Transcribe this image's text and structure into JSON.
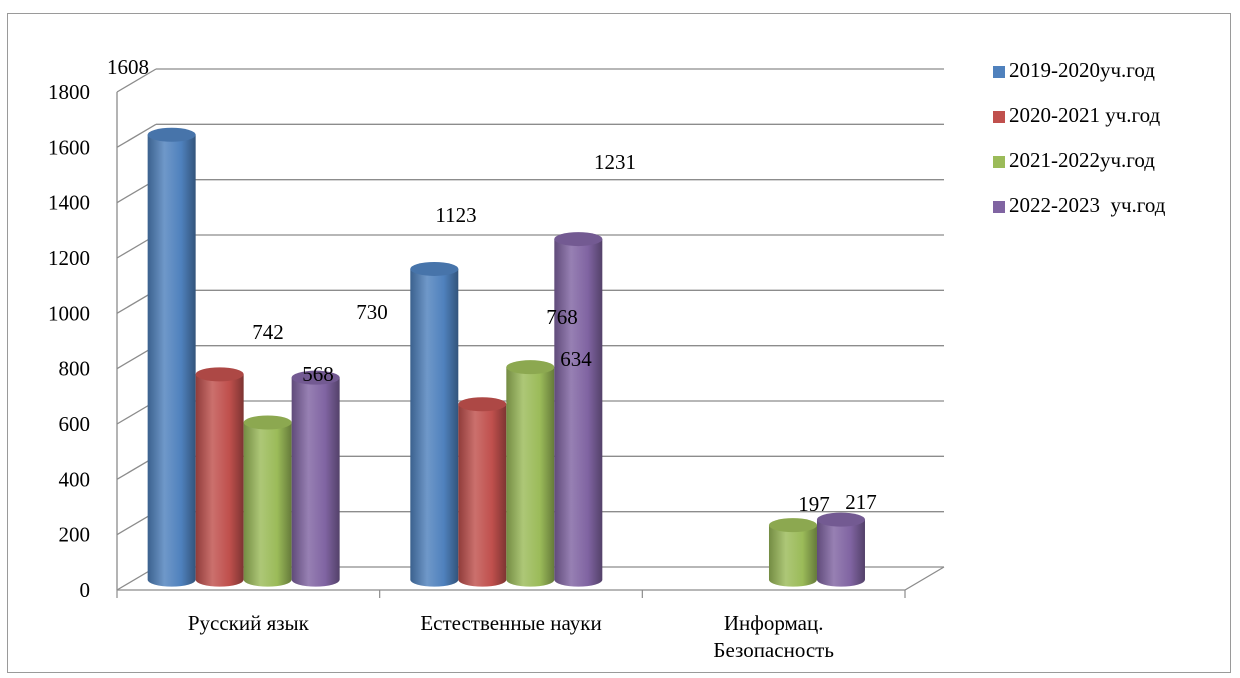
{
  "chart_data": {
    "type": "bar",
    "style": "3d-cylinder",
    "categories": [
      "Русский язык",
      "Естественные науки",
      "Информац. Безопасность"
    ],
    "series": [
      {
        "name": "2019-2020уч.год",
        "color": "#4f81bd",
        "values": [
          1608,
          1123,
          null
        ]
      },
      {
        "name": "2020-2021 уч.год",
        "color": "#c0504d",
        "values": [
          742,
          634,
          null
        ]
      },
      {
        "name": "2021-2022уч.год",
        "color": "#9bbb59",
        "values": [
          568,
          768,
          197
        ]
      },
      {
        "name": "2022-2023  уч.год",
        "color": "#8064a2",
        "values": [
          730,
          1231,
          217
        ]
      }
    ],
    "data_labels": [
      {
        "category": 0,
        "text": "1608"
      },
      {
        "category": 0,
        "text": "742"
      },
      {
        "category": 0,
        "text": "568"
      },
      {
        "category": 0,
        "text": "730"
      },
      {
        "category": 1,
        "text": "1123"
      },
      {
        "category": 1,
        "text": "634"
      },
      {
        "category": 1,
        "text": "768"
      },
      {
        "category": 1,
        "text": "1231"
      },
      {
        "category": 2,
        "text": "197"
      },
      {
        "category": 2,
        "text": "217"
      }
    ],
    "ylim": [
      0,
      1800
    ],
    "yticks": [
      "0",
      "200",
      "400",
      "600",
      "800",
      "1000",
      "1200",
      "1400",
      "1600",
      "1800"
    ],
    "grid": true,
    "legend": "right"
  }
}
